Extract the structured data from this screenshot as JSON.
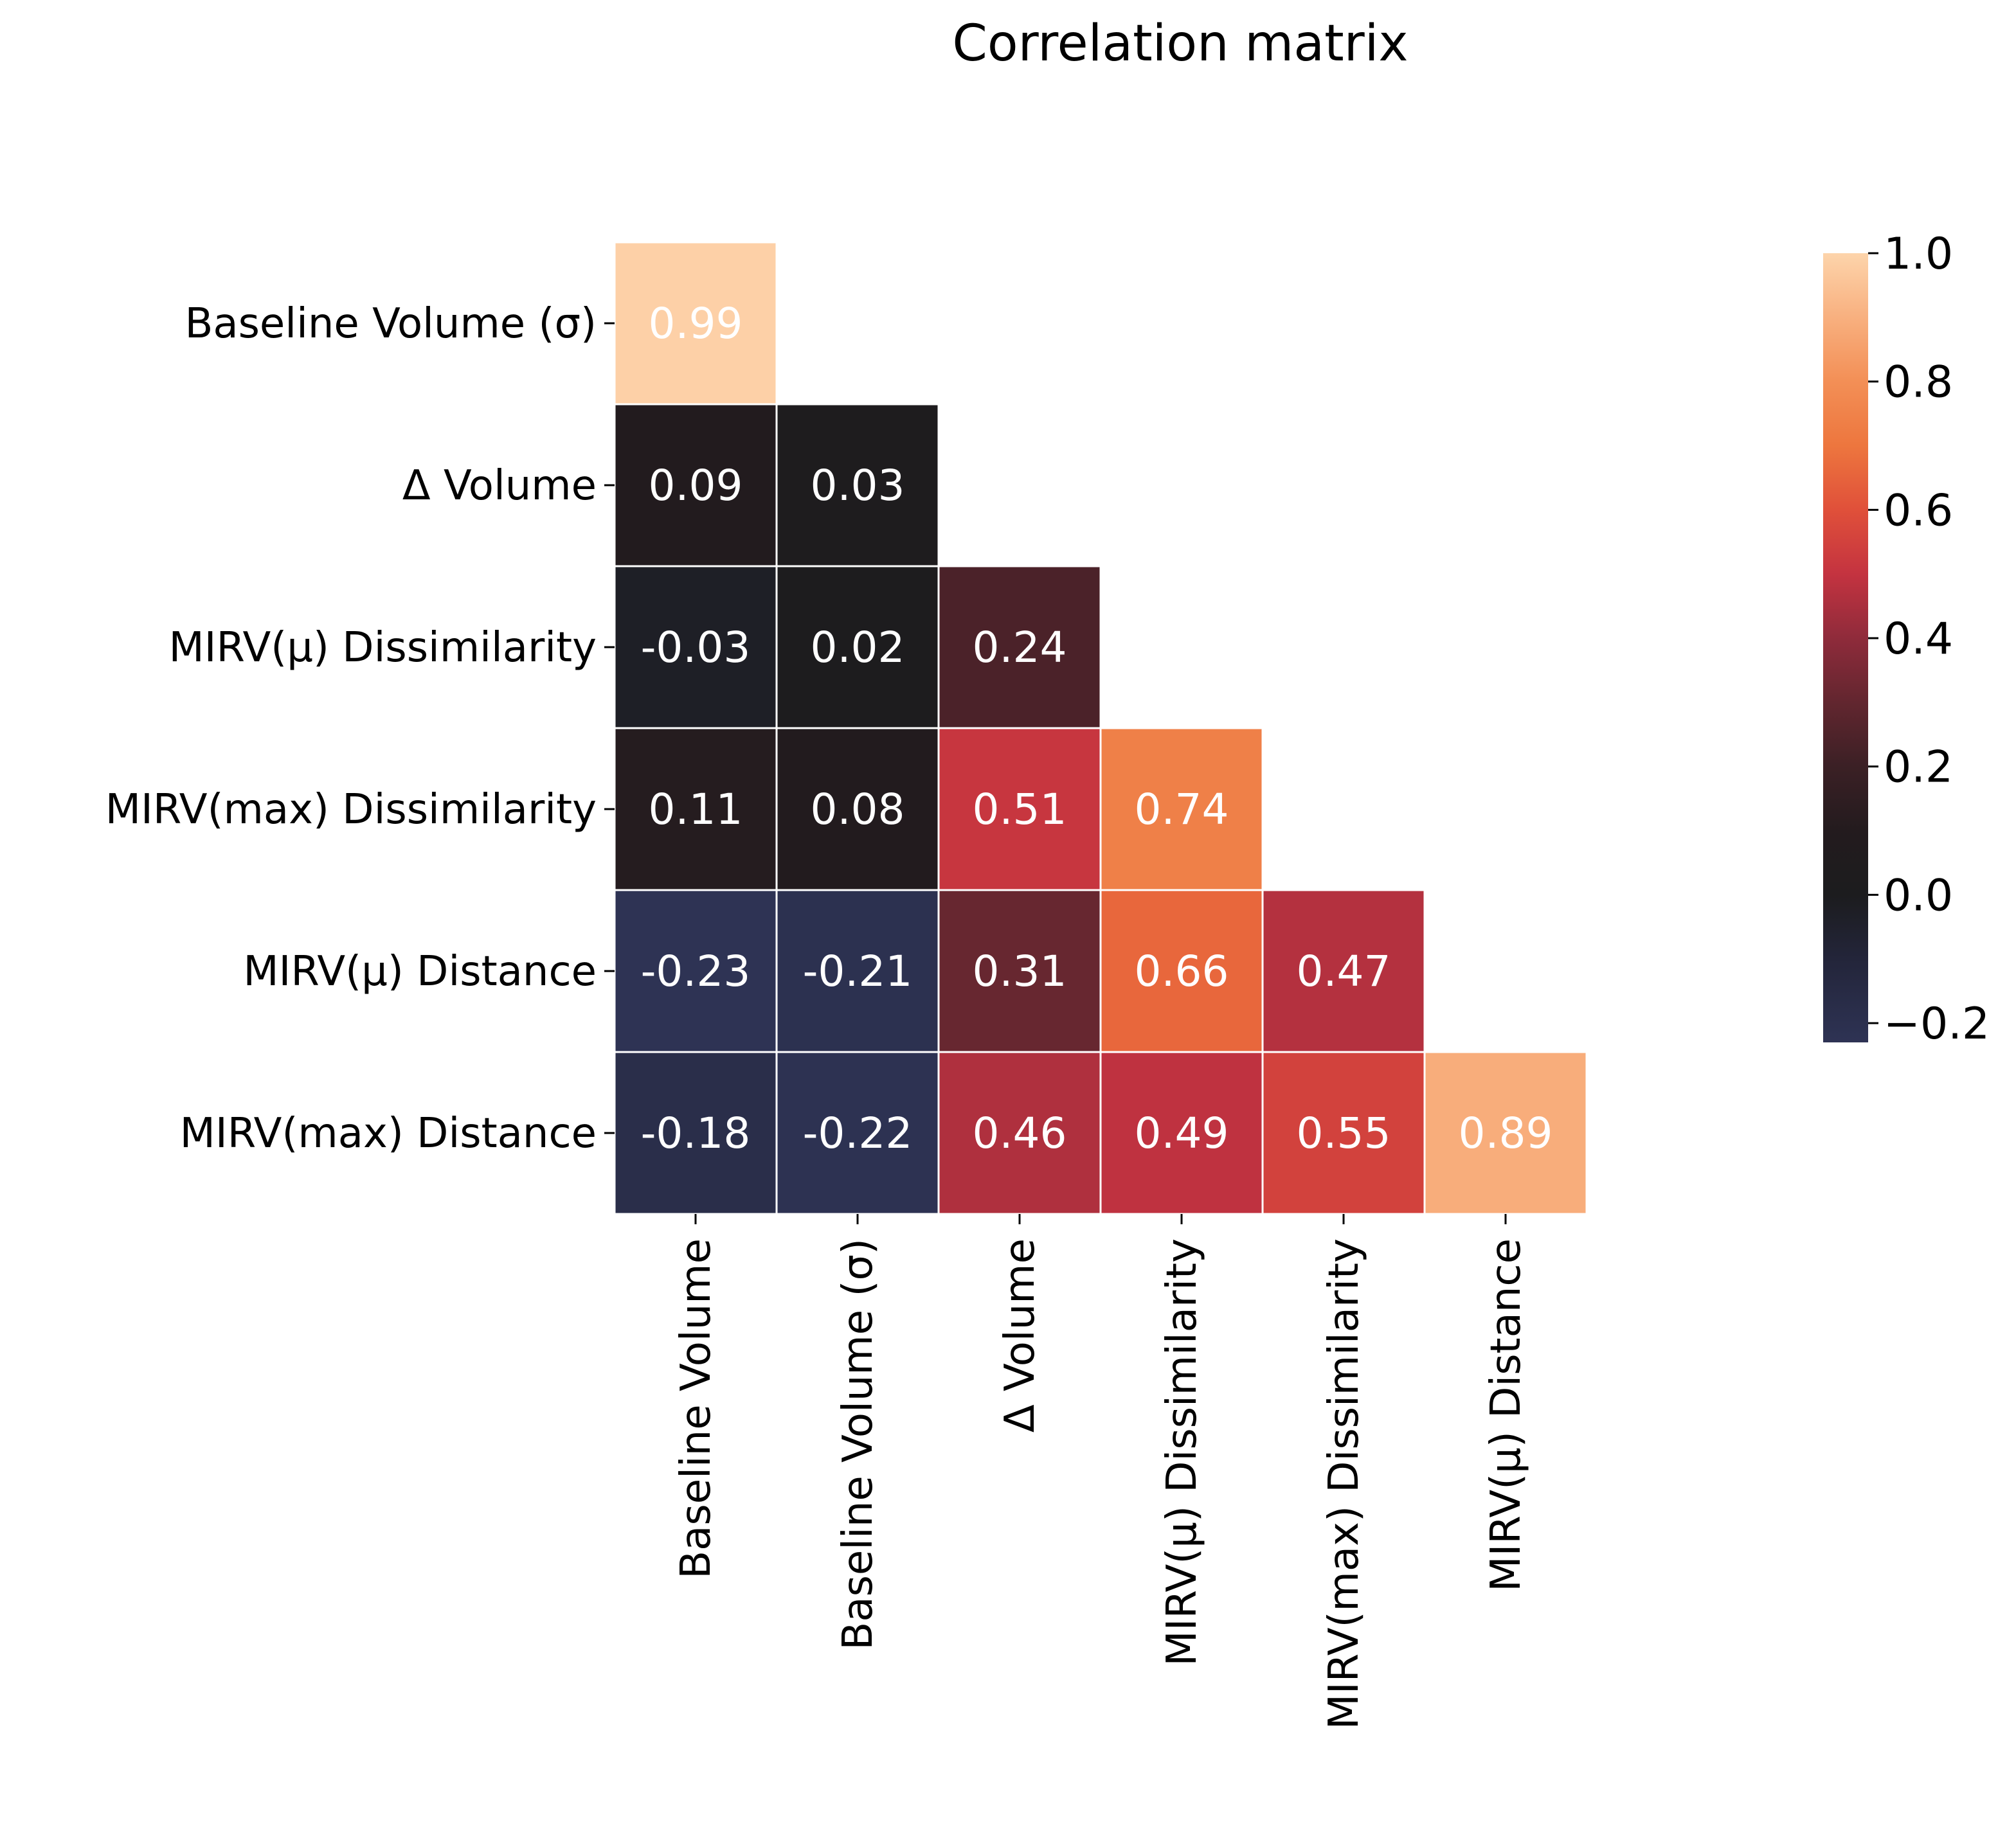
{
  "chart_data": {
    "type": "heatmap",
    "title": "Correlation matrix",
    "row_labels": [
      "Baseline Volume (σ)",
      "Δ Volume",
      "MIRV(μ) Dissimilarity",
      "MIRV(max) Dissimilarity",
      "MIRV(μ) Distance",
      "MIRV(max) Distance"
    ],
    "column_labels": [
      "Baseline Volume",
      "Baseline Volume (σ)",
      "Δ Volume",
      "MIRV(μ) Dissimilarity",
      "MIRV(max) Dissimilarity",
      "MIRV(μ) Distance"
    ],
    "values": [
      [
        0.99,
        null,
        null,
        null,
        null,
        null
      ],
      [
        0.09,
        0.03,
        null,
        null,
        null,
        null
      ],
      [
        -0.03,
        0.02,
        0.24,
        null,
        null,
        null
      ],
      [
        0.11,
        0.08,
        0.51,
        0.74,
        null,
        null
      ],
      [
        -0.23,
        -0.21,
        0.31,
        0.66,
        0.47,
        null
      ],
      [
        -0.18,
        -0.22,
        0.46,
        0.49,
        0.55,
        0.89
      ]
    ],
    "value_labels": [
      [
        "0.99",
        "",
        "",
        "",
        "",
        ""
      ],
      [
        "0.09",
        "0.03",
        "",
        "",
        "",
        ""
      ],
      [
        "-0.03",
        "0.02",
        "0.24",
        "",
        "",
        ""
      ],
      [
        "0.11",
        "0.08",
        "0.51",
        "0.74",
        "",
        ""
      ],
      [
        "-0.23",
        "-0.21",
        "0.31",
        "0.66",
        "0.47",
        ""
      ],
      [
        "-0.18",
        "-0.22",
        "0.46",
        "0.49",
        "0.55",
        "0.89"
      ]
    ],
    "colorbar": {
      "vmin": -0.23,
      "vmax": 1.0,
      "ticks": [
        1.0,
        0.8,
        0.6,
        0.4,
        0.2,
        0.0,
        -0.2
      ],
      "tick_labels": [
        "1.0",
        "0.8",
        "0.6",
        "0.4",
        "0.2",
        "0.0",
        "−0.2"
      ],
      "colormap_stops": [
        {
          "value": -0.23,
          "color": "#2e3354"
        },
        {
          "value": -0.1,
          "color": "#23253a"
        },
        {
          "value": 0.0,
          "color": "#1c1c1e"
        },
        {
          "value": 0.1,
          "color": "#231b1e"
        },
        {
          "value": 0.2,
          "color": "#3b2025"
        },
        {
          "value": 0.3,
          "color": "#62262f"
        },
        {
          "value": 0.4,
          "color": "#8f2b3b"
        },
        {
          "value": 0.5,
          "color": "#c43340"
        },
        {
          "value": 0.6,
          "color": "#e0503a"
        },
        {
          "value": 0.7,
          "color": "#ed763e"
        },
        {
          "value": 0.8,
          "color": "#f38f56"
        },
        {
          "value": 0.9,
          "color": "#f8b07f"
        },
        {
          "value": 1.0,
          "color": "#fdd4ab"
        }
      ]
    },
    "cell_edge_color": "#ffffff",
    "mask": "upper-triangle"
  }
}
